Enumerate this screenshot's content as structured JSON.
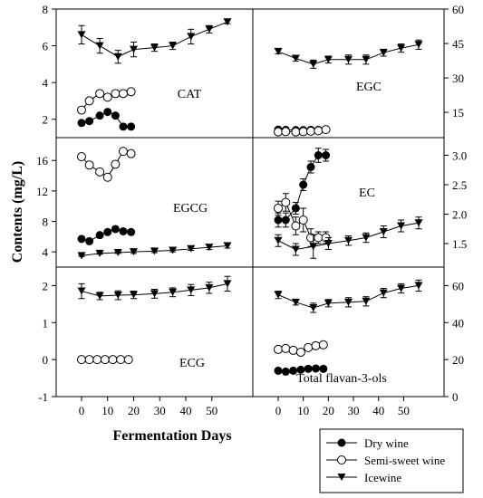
{
  "figure": {
    "ylabel": "Contents (mg/L)",
    "xlabel": "Fermentation Days",
    "x_ticks": [
      "0",
      "10",
      "20",
      "30",
      "40",
      "50"
    ],
    "legend": [
      "Dry wine",
      "Semi-sweet wine",
      "Icewine"
    ]
  },
  "chart_data": [
    {
      "type": "line",
      "title": "CAT",
      "y_axis_side": "left",
      "ylim": [
        1,
        8
      ],
      "y_ticks": [
        "2",
        "4",
        "6",
        "8"
      ],
      "series": [
        {
          "name": "Dry wine",
          "x": [
            0,
            3,
            7,
            10,
            13,
            16,
            19
          ],
          "y": [
            1.8,
            1.9,
            2.2,
            2.4,
            2.2,
            1.6,
            1.6
          ]
        },
        {
          "name": "Semi-sweet wine",
          "x": [
            0,
            3,
            7,
            10,
            13,
            16,
            19
          ],
          "y": [
            2.5,
            3.0,
            3.4,
            3.2,
            3.4,
            3.4,
            3.5
          ]
        },
        {
          "name": "Icewine",
          "x": [
            0,
            7,
            14,
            20,
            28,
            35,
            42,
            49,
            56
          ],
          "y": [
            6.6,
            6.0,
            5.4,
            5.8,
            5.9,
            6.0,
            6.5,
            6.9,
            7.3
          ],
          "err": [
            0.5,
            0.4,
            0.35,
            0.4,
            0.2,
            0.2,
            0.4,
            0.2,
            0.1
          ]
        }
      ]
    },
    {
      "type": "line",
      "title": "EGC",
      "y_axis_side": "right",
      "ylim": [
        4,
        60
      ],
      "y_ticks": [
        "15",
        "30",
        "45",
        "60"
      ],
      "series": [
        {
          "name": "Dry wine",
          "x": [
            0,
            3,
            7,
            10,
            13,
            16,
            19
          ],
          "y": [
            7.5,
            7.4,
            7.3,
            7.3,
            7.4,
            7.4,
            7.5
          ]
        },
        {
          "name": "Semi-sweet wine",
          "x": [
            0,
            3,
            7,
            10,
            13,
            16,
            19
          ],
          "y": [
            6.5,
            6.6,
            6.5,
            6.6,
            6.8,
            7.0,
            7.5
          ]
        },
        {
          "name": "Icewine",
          "x": [
            0,
            7,
            14,
            20,
            28,
            35,
            42,
            49,
            56
          ],
          "y": [
            41.5,
            38.5,
            36.0,
            38.0,
            38.0,
            38.0,
            41.0,
            43.0,
            44.5
          ],
          "err": [
            1.0,
            1.2,
            1.8,
            1.5,
            2.0,
            2.0,
            1.5,
            1.8,
            2.0
          ]
        }
      ]
    },
    {
      "type": "line",
      "title": "EGCG",
      "y_axis_side": "left",
      "ylim": [
        2,
        19
      ],
      "y_ticks": [
        "4",
        "8",
        "12",
        "16"
      ],
      "series": [
        {
          "name": "Dry wine",
          "x": [
            0,
            3,
            7,
            10,
            13,
            16,
            19
          ],
          "y": [
            5.7,
            5.4,
            6.2,
            6.6,
            7.0,
            6.7,
            6.6
          ]
        },
        {
          "name": "Semi-sweet wine",
          "x": [
            0,
            3,
            7,
            10,
            13,
            16,
            19
          ],
          "y": [
            16.5,
            15.4,
            14.5,
            13.8,
            15.5,
            17.2,
            16.9
          ]
        },
        {
          "name": "Icewine",
          "x": [
            0,
            7,
            14,
            20,
            28,
            35,
            42,
            49,
            56
          ],
          "y": [
            3.5,
            3.8,
            3.9,
            4.0,
            4.1,
            4.2,
            4.4,
            4.6,
            4.8
          ],
          "err": [
            0.1,
            0.1,
            0.1,
            0.2,
            0.2,
            0.2,
            0.2,
            0.3,
            0.3
          ]
        }
      ]
    },
    {
      "type": "line",
      "title": "EC",
      "y_axis_side": "right",
      "ylim": [
        1.1,
        3.3
      ],
      "y_ticks": [
        "1.5",
        "2.0",
        "2.5",
        "3.0"
      ],
      "series": [
        {
          "name": "Dry wine",
          "x": [
            0,
            3,
            7,
            10,
            13,
            16,
            19
          ],
          "y": [
            1.9,
            1.9,
            2.1,
            2.5,
            2.8,
            3.0,
            3.0
          ],
          "err": [
            0.12,
            0.12,
            0.1,
            0.1,
            0.1,
            0.12,
            0.1
          ]
        },
        {
          "name": "Semi-sweet wine",
          "x": [
            0,
            3,
            7,
            10,
            13,
            16,
            19
          ],
          "y": [
            2.1,
            2.2,
            1.8,
            1.9,
            1.6,
            1.6,
            1.6
          ],
          "err": [
            0.12,
            0.15,
            0.15,
            0.2,
            0.15,
            0.1,
            0.1
          ]
        },
        {
          "name": "Icewine",
          "x": [
            0,
            7,
            14,
            20,
            28,
            35,
            42,
            49,
            56
          ],
          "y": [
            1.55,
            1.4,
            1.45,
            1.5,
            1.55,
            1.6,
            1.7,
            1.8,
            1.85
          ],
          "err": [
            0.1,
            0.1,
            0.2,
            0.1,
            0.08,
            0.08,
            0.1,
            0.1,
            0.1
          ]
        }
      ]
    },
    {
      "type": "line",
      "title": "ECG",
      "y_axis_side": "left",
      "ylim": [
        -1,
        2.5
      ],
      "y_ticks": [
        "-1",
        "0",
        "1",
        "2"
      ],
      "series": [
        {
          "name": "Semi-sweet wine",
          "x": [
            0,
            3,
            6,
            9,
            12,
            15,
            18
          ],
          "y": [
            0.0,
            0.0,
            0.0,
            0.0,
            0.0,
            0.0,
            0.0
          ]
        },
        {
          "name": "Icewine",
          "x": [
            0,
            7,
            14,
            20,
            28,
            35,
            42,
            49,
            56
          ],
          "y": [
            1.85,
            1.72,
            1.74,
            1.75,
            1.78,
            1.82,
            1.88,
            1.94,
            2.05
          ],
          "err": [
            0.2,
            0.1,
            0.12,
            0.1,
            0.12,
            0.12,
            0.15,
            0.15,
            0.2
          ]
        }
      ]
    },
    {
      "type": "line",
      "title": "Total flavan-3-ols",
      "y_axis_side": "right",
      "ylim": [
        0,
        70
      ],
      "y_ticks": [
        "0",
        "20",
        "40",
        "60"
      ],
      "series": [
        {
          "name": "Dry wine",
          "x": [
            0,
            3,
            6,
            9,
            12,
            15,
            18
          ],
          "y": [
            14.0,
            13.5,
            14.0,
            14.5,
            15.0,
            15.2,
            15.0
          ]
        },
        {
          "name": "Semi-sweet wine",
          "x": [
            0,
            3,
            6,
            9,
            12,
            15,
            18
          ],
          "y": [
            25.5,
            26.0,
            25.0,
            24.0,
            26.5,
            27.5,
            28.0
          ]
        },
        {
          "name": "Icewine",
          "x": [
            0,
            7,
            14,
            20,
            28,
            35,
            42,
            49,
            56
          ],
          "y": [
            55.0,
            51.0,
            48.0,
            50.5,
            51.0,
            51.5,
            56.0,
            58.5,
            60.0
          ],
          "err": [
            2.0,
            1.5,
            2.5,
            2.0,
            2.5,
            2.5,
            2.5,
            2.5,
            3.0
          ]
        }
      ]
    }
  ]
}
